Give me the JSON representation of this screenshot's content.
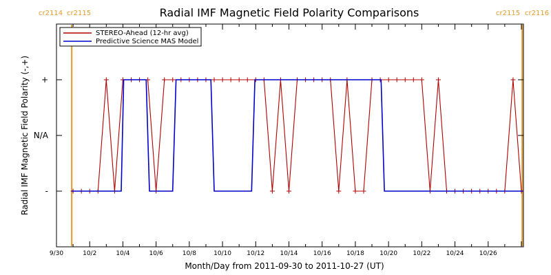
{
  "chart_data": {
    "type": "line",
    "title": "Radial IMF Magnetic Field Polarity Comparisons",
    "xlabel": "Month/Day from 2011-09-30 to 2011-10-27 (UT)",
    "ylabel": "Radial IMF Magnetic Field Polarity (-,+)",
    "xlim": [
      0,
      28.125
    ],
    "ylim": [
      -2,
      2
    ],
    "y_ticks": [
      {
        "value": 1,
        "label": "+"
      },
      {
        "value": 0,
        "label": "N/A"
      },
      {
        "value": -1,
        "label": "-"
      }
    ],
    "x_ticks": [
      {
        "value": 0,
        "label": "9/30"
      },
      {
        "value": 2,
        "label": "10/2"
      },
      {
        "value": 4,
        "label": "10/4"
      },
      {
        "value": 6,
        "label": "10/6"
      },
      {
        "value": 8,
        "label": "10/8"
      },
      {
        "value": 10,
        "label": "10/10"
      },
      {
        "value": 12,
        "label": "10/12"
      },
      {
        "value": 14,
        "label": "10/14"
      },
      {
        "value": 16,
        "label": "10/16"
      },
      {
        "value": 18,
        "label": "10/18"
      },
      {
        "value": 20,
        "label": "10/20"
      },
      {
        "value": 22,
        "label": "10/22"
      },
      {
        "value": 24,
        "label": "10/24"
      },
      {
        "value": 26,
        "label": "10/26"
      }
    ],
    "carrington_markers": [
      {
        "x": 0.92,
        "left_label": "cr2114",
        "right_label": "cr2115"
      },
      {
        "x": 28.05,
        "left_label": "cr2115",
        "right_label": "cr2116"
      }
    ],
    "legend": {
      "position": "top-left"
    },
    "series": [
      {
        "name": "STEREO-Ahead (12-hr avg)",
        "color": "#b00000",
        "markers": true,
        "x": [
          1.0,
          1.5,
          2.0,
          2.5,
          3.0,
          3.5,
          4.0,
          4.5,
          5.0,
          5.5,
          6.0,
          6.5,
          7.0,
          7.5,
          8.0,
          8.5,
          9.0,
          9.5,
          10.0,
          10.5,
          11.0,
          11.5,
          12.0,
          12.5,
          13.0,
          13.5,
          14.0,
          14.5,
          15.0,
          15.5,
          16.0,
          16.5,
          17.0,
          17.5,
          18.0,
          18.5,
          19.0,
          19.5,
          20.0,
          20.5,
          21.0,
          21.5,
          22.0,
          22.5,
          23.0,
          23.5,
          24.0,
          24.5,
          25.0,
          25.5,
          26.0,
          26.5,
          27.0,
          27.5,
          28.0
        ],
        "y": [
          -1,
          -1,
          -1,
          -1,
          1,
          -1,
          1,
          1,
          1,
          1,
          -1,
          1,
          1,
          1,
          1,
          1,
          1,
          1,
          1,
          1,
          1,
          1,
          1,
          1,
          -1,
          1,
          -1,
          1,
          1,
          1,
          1,
          1,
          -1,
          1,
          -1,
          -1,
          1,
          1,
          1,
          1,
          1,
          1,
          1,
          -1,
          1,
          -1,
          -1,
          -1,
          -1,
          -1,
          -1,
          -1,
          -1,
          1,
          -1
        ]
      },
      {
        "name": "Predictive Science MAS Model",
        "color": "#0000c8",
        "markers": false,
        "x": [
          0.9,
          3.9,
          4.05,
          5.4,
          5.6,
          7.0,
          7.2,
          9.3,
          9.5,
          11.75,
          11.95,
          19.55,
          19.75,
          28.1
        ],
        "y": [
          -1,
          -1,
          1,
          1,
          -1,
          -1,
          1,
          1,
          -1,
          -1,
          1,
          1,
          -1,
          -1
        ]
      }
    ]
  }
}
